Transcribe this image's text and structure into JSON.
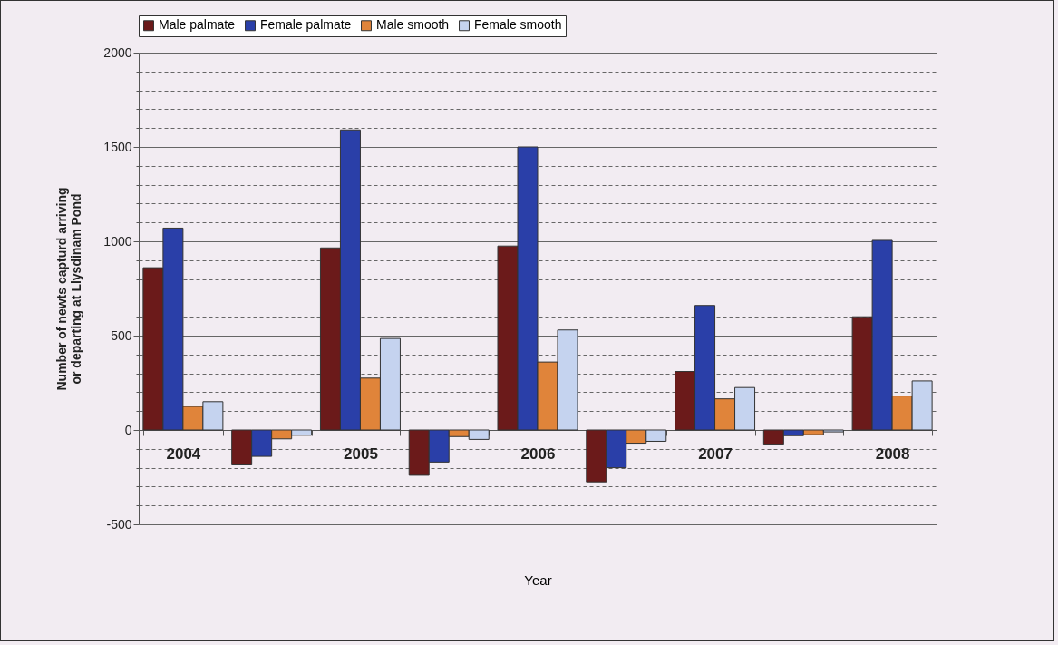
{
  "chart_data": {
    "type": "bar",
    "xlabel": "Year",
    "ylabel": "Number of newts capturd arriving or departing at Llysdinam Pond",
    "categories": [
      "2004",
      null,
      "2005",
      null,
      "2006",
      null,
      "2007",
      null,
      "2008"
    ],
    "series": [
      {
        "name": "Male palmate",
        "color": "#6b1a1a",
        "values": [
          860,
          -185,
          965,
          -240,
          975,
          -275,
          310,
          -75,
          600
        ]
      },
      {
        "name": "Female palmate",
        "color": "#2a3fa8",
        "values": [
          1070,
          -140,
          1590,
          -170,
          1500,
          -200,
          660,
          -30,
          1005
        ]
      },
      {
        "name": "Male smooth",
        "color": "#e0843a",
        "values": [
          125,
          -47,
          275,
          -35,
          360,
          -70,
          165,
          -25,
          180
        ]
      },
      {
        "name": "Female smooth",
        "color": "#c5d3ef",
        "values": [
          150,
          -28,
          485,
          -50,
          530,
          -60,
          225,
          -10,
          260
        ]
      }
    ],
    "ylim": [
      -500,
      2000
    ],
    "yticks": [
      -500,
      0,
      500,
      1000,
      1500,
      2000
    ],
    "grid": true,
    "legend": "top"
  }
}
